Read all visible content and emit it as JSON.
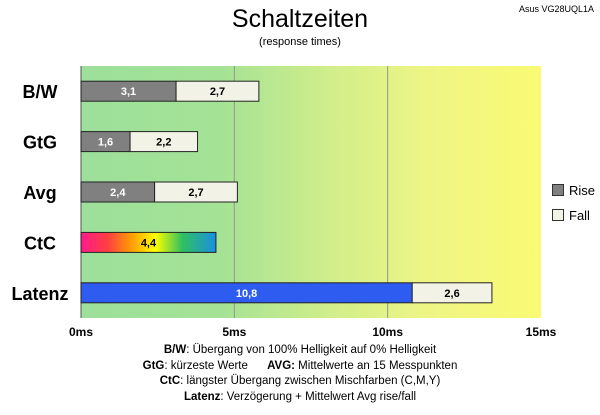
{
  "header": {
    "title": "Schaltzeiten",
    "subtitle": "(response times)",
    "model": "Asus VG28UQL1A"
  },
  "legend": {
    "rise_label": "Rise",
    "fall_label": "Fall",
    "rise_color": "#808080",
    "fall_color": "#f2f2e6"
  },
  "footer": {
    "line1_key": "B/W",
    "line1_text": ":  Übergang von 100% Helligkeit auf 0% Helligkeit",
    "line2_key": "GtG",
    "line2_text": ": kürzeste  Werte",
    "line2_key2": "AVG:",
    "line2_text2": " Mittelwerte  an 15 Messpunkten",
    "line3_key": "CtC",
    "line3_text": ": längster Übergang  zwischen Mischfarben (C,M,Y)",
    "line4_key": "Latenz",
    "line4_text": ": Verzögerung  + Mittelwert Avg rise/fall"
  },
  "chart_data": {
    "type": "bar",
    "orientation": "horizontal",
    "stacked": true,
    "categories": [
      "B/W",
      "GtG",
      "Avg",
      "CtC",
      "Latenz"
    ],
    "series": [
      {
        "name": "Rise",
        "values": [
          3.1,
          1.6,
          2.4,
          4.4,
          10.8
        ],
        "labels": [
          "3,1",
          "1,6",
          "2,4",
          "4,4",
          "10,8"
        ]
      },
      {
        "name": "Fall",
        "values": [
          2.7,
          2.2,
          2.7,
          null,
          2.6
        ],
        "labels": [
          "2,7",
          "2,2",
          "2,7",
          "",
          "2,6"
        ]
      }
    ],
    "xlim": [
      0,
      15
    ],
    "xticks": [
      0,
      5,
      10,
      15
    ],
    "xtick_labels": [
      "0ms",
      "5ms",
      "10ms",
      "15ms"
    ],
    "special_colors": {
      "CtC": "rainbow",
      "Latenz": "#2f5cf0"
    },
    "background": "gradient green to yellow",
    "legend_position": "right"
  }
}
